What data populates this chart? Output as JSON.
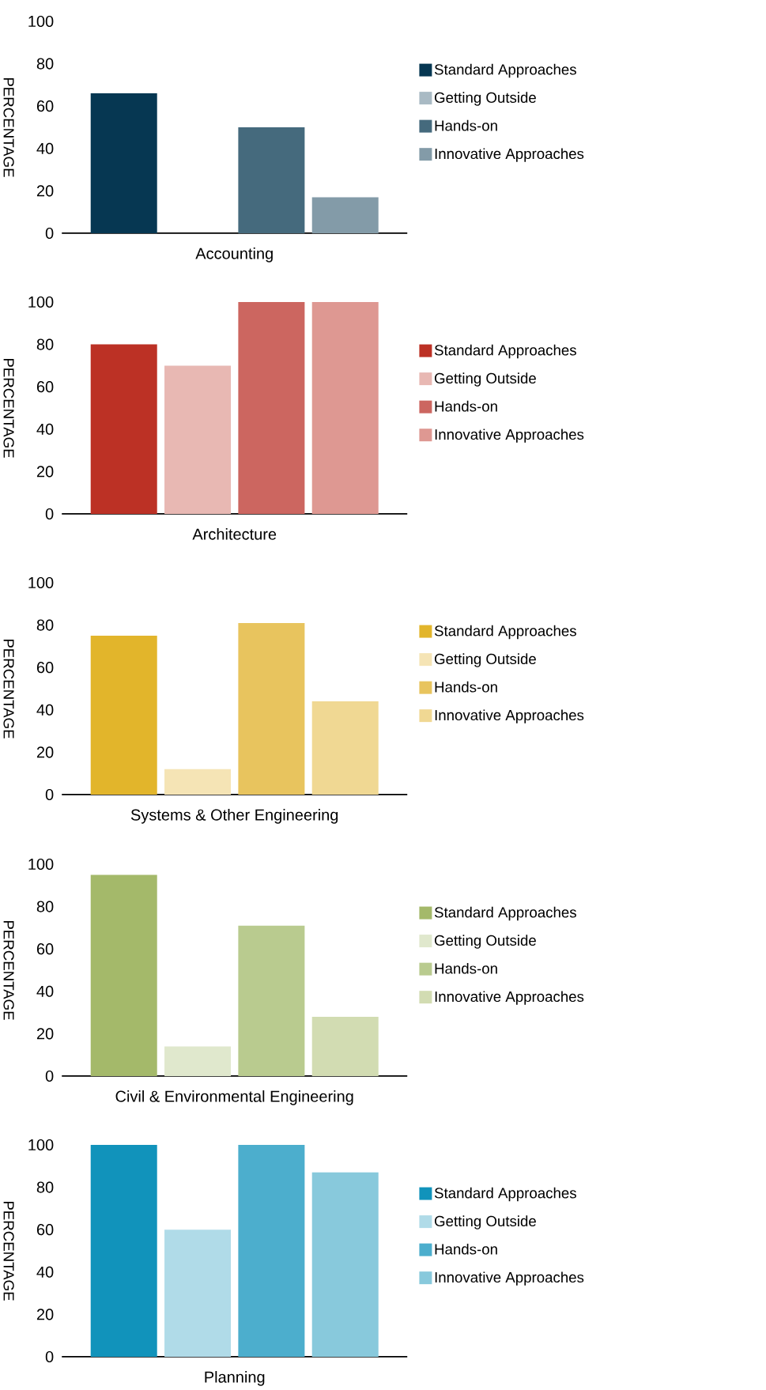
{
  "chart_data": [
    {
      "type": "bar",
      "ylabel": "PERCENTAGE",
      "categories": [
        "Accounting"
      ],
      "ylim": [
        0,
        100
      ],
      "yticks": [
        0,
        20,
        40,
        60,
        80,
        100
      ],
      "legend": "right",
      "series": [
        {
          "name": "Standard Approaches",
          "color": "#063752",
          "values": [
            66
          ]
        },
        {
          "name": "Getting Outside",
          "color": "#a9bac4",
          "values": [
            0
          ]
        },
        {
          "name": "Hands-on",
          "color": "#456a7d",
          "values": [
            50
          ]
        },
        {
          "name": "Innovative Approaches",
          "color": "#839ba8",
          "values": [
            17
          ]
        }
      ]
    },
    {
      "type": "bar",
      "ylabel": "PERCENTAGE",
      "categories": [
        "Architecture"
      ],
      "ylim": [
        0,
        100
      ],
      "yticks": [
        0,
        20,
        40,
        60,
        80,
        100
      ],
      "legend": "right",
      "series": [
        {
          "name": "Standard Approaches",
          "color": "#bc3125",
          "values": [
            80
          ]
        },
        {
          "name": "Getting Outside",
          "color": "#e8b8b3",
          "values": [
            70
          ]
        },
        {
          "name": "Hands-on",
          "color": "#cc6660",
          "values": [
            100
          ]
        },
        {
          "name": "Innovative Approaches",
          "color": "#de9892",
          "values": [
            100
          ]
        }
      ]
    },
    {
      "type": "bar",
      "ylabel": "PERCENTAGE",
      "categories": [
        "Systems & Other Engineering"
      ],
      "ylim": [
        0,
        100
      ],
      "yticks": [
        0,
        20,
        40,
        60,
        80,
        100
      ],
      "legend": "right",
      "series": [
        {
          "name": "Standard Approaches",
          "color": "#e2b52b",
          "values": [
            75
          ]
        },
        {
          "name": "Getting Outside",
          "color": "#f5e4b5",
          "values": [
            12
          ]
        },
        {
          "name": "Hands-on",
          "color": "#e8c45e",
          "values": [
            81
          ]
        },
        {
          "name": "Innovative Approaches",
          "color": "#f0d893",
          "values": [
            44
          ]
        }
      ]
    },
    {
      "type": "bar",
      "ylabel": "PERCENTAGE",
      "categories": [
        "Civil & Environmental Engineering"
      ],
      "ylim": [
        0,
        100
      ],
      "yticks": [
        0,
        20,
        40,
        60,
        80,
        100
      ],
      "legend": "right",
      "series": [
        {
          "name": "Standard Approaches",
          "color": "#a4b96a",
          "values": [
            95
          ]
        },
        {
          "name": "Getting Outside",
          "color": "#e0e8cd",
          "values": [
            14
          ]
        },
        {
          "name": "Hands-on",
          "color": "#b9cb8f",
          "values": [
            71
          ]
        },
        {
          "name": "Innovative Approaches",
          "color": "#d2dcb2",
          "values": [
            28
          ]
        }
      ]
    },
    {
      "type": "bar",
      "ylabel": "PERCENTAGE",
      "categories": [
        "Planning"
      ],
      "ylim": [
        0,
        100
      ],
      "yticks": [
        0,
        20,
        40,
        60,
        80,
        100
      ],
      "legend": "right",
      "series": [
        {
          "name": "Standard Approaches",
          "color": "#1193bb",
          "values": [
            100
          ]
        },
        {
          "name": "Getting Outside",
          "color": "#b0dbe8",
          "values": [
            60
          ]
        },
        {
          "name": "Hands-on",
          "color": "#4caecd",
          "values": [
            100
          ]
        },
        {
          "name": "Innovative Approaches",
          "color": "#88c9dc",
          "values": [
            87
          ]
        }
      ]
    }
  ]
}
